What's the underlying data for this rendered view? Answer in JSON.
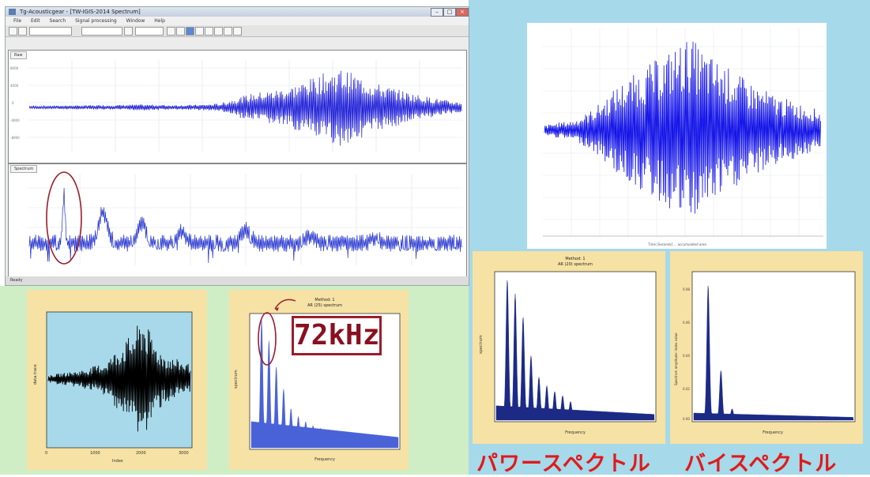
{
  "window": {
    "title": "Tg-Acousticgear - [TW-IGIS-2014 Spectrum]",
    "menu": [
      "File",
      "Edit",
      "Search",
      "Signal processing",
      "Window",
      "Help"
    ],
    "panel1_tab": "Raw",
    "panel2_tab": "Spectrum",
    "status_text": "Ready"
  },
  "annotation": {
    "label": "72kHz"
  },
  "japanese": {
    "power_spectrum": "パワースペクトル",
    "bispectrum": "バイスペクトル"
  },
  "plot_power_small": {
    "title_line1": "Method: 1",
    "title_line2": "AR (25) spectrum",
    "xlabel": "Frequency",
    "ylabel": "spectrum"
  },
  "plot_power_right": {
    "title_line1": "Method: 1",
    "title_line2": "AR (20) spectrum",
    "xlabel": "Frequency",
    "ylabel": "spectrum"
  },
  "plot_bispectrum": {
    "xlabel": "Frequency",
    "ylabel": "Spectrum amplitude: index value",
    "yticks": [
      "0.08",
      "0.06",
      "0.04",
      "0.02",
      "0.00"
    ]
  },
  "plot_waveform_small": {
    "xlabel": "Index",
    "ylabel": "data.trace",
    "xticks": [
      "0",
      "1000",
      "2000",
      "3000"
    ]
  },
  "plot_right_top": {
    "xlabel": "Time [Seconds] … accumulated area"
  },
  "chart_data": [
    {
      "type": "line",
      "name": "raw-waveform",
      "description_x": [
        0,
        1.0
      ],
      "envelope": [
        0.03,
        0.03,
        0.04,
        0.04,
        0.05,
        0.05,
        0.06,
        0.06,
        0.05,
        0.05,
        0.06,
        0.08,
        0.2,
        0.3,
        0.35,
        0.42,
        0.55,
        0.7,
        0.8,
        0.65,
        0.5,
        0.4,
        0.3,
        0.22,
        0.15,
        0.1
      ]
    },
    {
      "type": "line",
      "name": "spectrum",
      "peaks_x": [
        0.08,
        0.17,
        0.26,
        0.35,
        0.5,
        0.65,
        0.8
      ],
      "peaks_y": [
        0.9,
        0.55,
        0.35,
        0.2,
        0.25,
        0.12,
        0.1
      ]
    },
    {
      "type": "area",
      "name": "power-spectrum-small",
      "peaks_x": [
        0.07,
        0.12,
        0.17,
        0.22,
        0.27,
        0.32,
        0.37,
        0.42,
        0.47
      ],
      "peaks_y": [
        0.98,
        0.82,
        0.62,
        0.45,
        0.3,
        0.24,
        0.2,
        0.17,
        0.15
      ]
    },
    {
      "type": "area",
      "name": "power-spectrum-right",
      "peaks_x": [
        0.07,
        0.12,
        0.17,
        0.22,
        0.27,
        0.32,
        0.37,
        0.42,
        0.47
      ],
      "peaks_y": [
        0.98,
        0.88,
        0.72,
        0.45,
        0.3,
        0.24,
        0.2,
        0.17,
        0.13
      ]
    },
    {
      "type": "area",
      "name": "bispectrum",
      "peaks_x": [
        0.09,
        0.17,
        0.24
      ],
      "peaks_y": [
        0.95,
        0.35,
        0.08
      ]
    }
  ]
}
